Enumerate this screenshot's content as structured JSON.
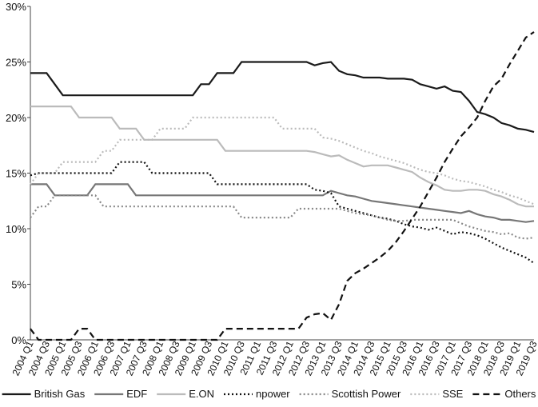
{
  "chart_data": {
    "type": "line",
    "categories": [
      "2004 Q1",
      null,
      "2004 Q3",
      null,
      "2005 Q1",
      null,
      "2005 Q3",
      null,
      "2006 Q1",
      null,
      "2006 Q3",
      null,
      "2007 Q1",
      null,
      "2007 Q3",
      null,
      "2008 Q1",
      null,
      "2008 Q3",
      null,
      "2009 Q1",
      null,
      "2009 Q3",
      null,
      "2010 Q1",
      null,
      "2010 Q3",
      null,
      "2011 Q1",
      null,
      "2011 Q3",
      null,
      "2012 Q1",
      null,
      "2012 Q3",
      null,
      "2013 Q1",
      null,
      "2013 Q3",
      null,
      "2014 Q1",
      null,
      "2014 Q3",
      null,
      "2015 Q1",
      null,
      "2015 Q3",
      null,
      "2016 Q1",
      null,
      "2016 Q3",
      null,
      "2017 Q1",
      null,
      "2017 Q3",
      null,
      "2018 Q1",
      null,
      "2018 Q3",
      null,
      "2019 Q1",
      null,
      "2019 Q3"
    ],
    "ylim": [
      0,
      30
    ],
    "yticks": [
      {
        "value": 0,
        "label": "0%"
      },
      {
        "value": 5,
        "label": "5%"
      },
      {
        "value": 10,
        "label": "10%"
      },
      {
        "value": 15,
        "label": "15%"
      },
      {
        "value": 20,
        "label": "20%"
      },
      {
        "value": 25,
        "label": "25%"
      },
      {
        "value": 30,
        "label": "30%"
      }
    ],
    "legend": "bottom",
    "series": [
      {
        "name": "British Gas",
        "color": "#1a1a1a",
        "style": "solid",
        "values": [
          24,
          24,
          24,
          23,
          22,
          22,
          22,
          22,
          22,
          22,
          22,
          22,
          22,
          22,
          22,
          22,
          22,
          22,
          22,
          22,
          22,
          23,
          23,
          24,
          24,
          24,
          25,
          25,
          25,
          25,
          25,
          25,
          25,
          25,
          25,
          24.7,
          24.9,
          25,
          24.2,
          23.9,
          23.8,
          23.6,
          23.6,
          23.6,
          23.5,
          23.5,
          23.5,
          23.4,
          23.0,
          22.8,
          22.6,
          22.8,
          22.4,
          22.3,
          21.5,
          20.5,
          20.3,
          20.0,
          19.5,
          19.3,
          19.0,
          18.9,
          18.7
        ]
      },
      {
        "name": "EDF",
        "color": "#777777",
        "style": "solid",
        "values": [
          14,
          14,
          14,
          13,
          13,
          13,
          13,
          13,
          14,
          14,
          14,
          14,
          14,
          13,
          13,
          13,
          13,
          13,
          13,
          13,
          13,
          13,
          13,
          13,
          13,
          13,
          13,
          13,
          13,
          13,
          13,
          13,
          13,
          13,
          13,
          13,
          13,
          13.4,
          13.2,
          13.0,
          12.9,
          12.7,
          12.5,
          12.4,
          12.3,
          12.2,
          12.1,
          12.0,
          11.9,
          11.8,
          11.7,
          11.6,
          11.5,
          11.4,
          11.6,
          11.3,
          11.1,
          11.0,
          10.8,
          10.8,
          10.7,
          10.6,
          10.7
        ]
      },
      {
        "name": "E.ON",
        "color": "#bbbbbb",
        "style": "solid",
        "values": [
          21,
          21,
          21,
          21,
          21,
          21,
          20,
          20,
          20,
          20,
          20,
          19,
          19,
          19,
          18,
          18,
          18,
          18,
          18,
          18,
          18,
          18,
          18,
          18,
          17,
          17,
          17,
          17,
          17,
          17,
          17,
          17,
          17,
          17,
          17,
          16.9,
          16.7,
          16.5,
          16.6,
          16.2,
          15.9,
          15.6,
          15.7,
          15.7,
          15.7,
          15.5,
          15.3,
          15.1,
          14.6,
          14.2,
          13.9,
          13.5,
          13.4,
          13.4,
          13.5,
          13.5,
          13.4,
          13.1,
          12.9,
          12.6,
          12.2,
          12.0,
          12.0
        ]
      },
      {
        "name": "npower",
        "color": "#111111",
        "style": "dotted",
        "values": [
          14.8,
          15,
          15,
          15,
          15,
          15,
          15,
          15,
          15,
          15,
          15,
          16,
          16,
          16,
          16,
          15,
          15,
          15,
          15,
          15,
          15,
          15,
          15,
          14,
          14,
          14,
          14,
          14,
          14,
          14,
          14,
          14,
          14,
          14,
          14,
          13.5,
          13.4,
          13.2,
          12.0,
          11.8,
          11.6,
          11.4,
          11.2,
          11.0,
          10.9,
          10.7,
          10.4,
          10.2,
          10.1,
          9.9,
          10.1,
          9.8,
          9.5,
          9.7,
          9.6,
          9.4,
          9.1,
          8.7,
          8.3,
          8.0,
          7.7,
          7.4,
          6.9
        ]
      },
      {
        "name": "Scottish Power",
        "color": "#888888",
        "style": "dotted",
        "values": [
          11,
          12,
          12,
          13,
          13,
          13,
          13,
          13,
          13,
          12,
          12,
          12,
          12,
          12,
          12,
          12,
          12,
          12,
          12,
          12,
          12,
          12,
          12,
          12,
          12,
          12,
          11,
          11,
          11,
          11,
          11,
          11,
          11,
          11.8,
          11.8,
          11.8,
          11.8,
          11.8,
          11.8,
          11.6,
          11.4,
          11.3,
          11.2,
          11.0,
          10.8,
          10.7,
          10.7,
          10.8,
          10.8,
          10.8,
          10.8,
          10.8,
          10.8,
          10.5,
          10.2,
          10.0,
          9.8,
          9.7,
          9.5,
          9.6,
          9.2,
          9.1,
          9.2
        ]
      },
      {
        "name": "SSE",
        "color": "#bbbbbb",
        "style": "dotted",
        "values": [
          14,
          15,
          15,
          15,
          16,
          16,
          16,
          16,
          16,
          17,
          17,
          18,
          18,
          18,
          18,
          18,
          19,
          19,
          19,
          19,
          20,
          20,
          20,
          20,
          20,
          20,
          20,
          20,
          20,
          20,
          20,
          19,
          19,
          19,
          19,
          19,
          18.2,
          18.1,
          17.9,
          17.6,
          17.3,
          17.0,
          16.8,
          16.5,
          16.3,
          16.1,
          15.9,
          15.6,
          15.3,
          15.1,
          15.0,
          14.8,
          14.5,
          14.3,
          14.2,
          14.0,
          13.8,
          13.5,
          13.3,
          13.0,
          12.8,
          12.5,
          12.2
        ]
      },
      {
        "name": "Others",
        "color": "#111111",
        "style": "dashed",
        "values": [
          1,
          0,
          0,
          0,
          0,
          0,
          1,
          1,
          0,
          0,
          0,
          0,
          0,
          0,
          0,
          0,
          0,
          0,
          0,
          0,
          0,
          0,
          0,
          0,
          1,
          1,
          1,
          1,
          1,
          1,
          1,
          1,
          1,
          1,
          2,
          2.3,
          2.4,
          1.8,
          3.2,
          5.3,
          6.0,
          6.4,
          6.9,
          7.4,
          8.0,
          8.8,
          9.8,
          10.9,
          12.0,
          13.3,
          14.6,
          16.0,
          17.2,
          18.3,
          19.1,
          20.0,
          21.5,
          22.8,
          23.5,
          24.8,
          26.0,
          27.2,
          27.7
        ]
      }
    ]
  }
}
